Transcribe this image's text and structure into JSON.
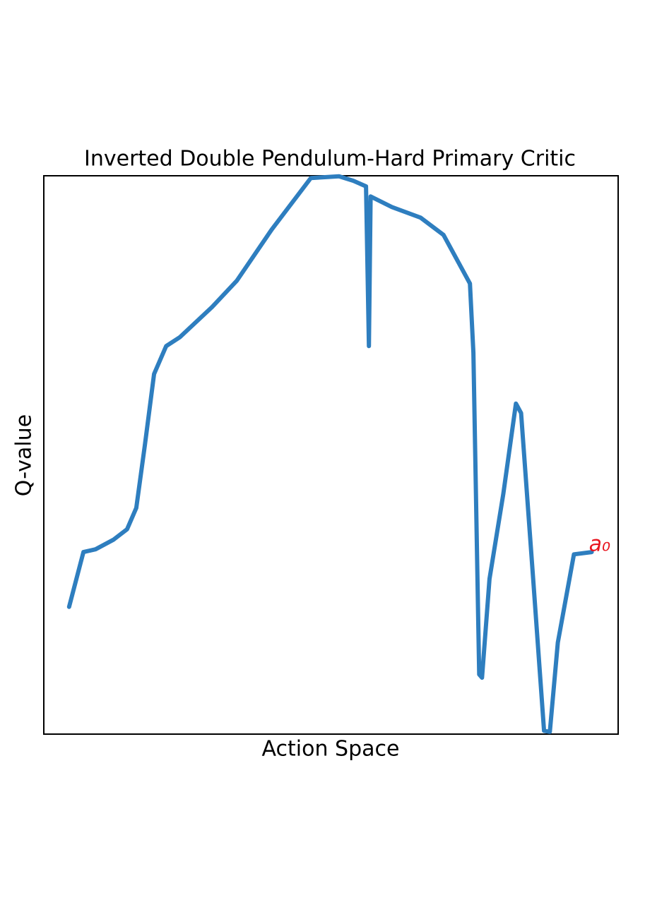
{
  "chart_data": {
    "type": "line",
    "title": "Inverted Double Pendulum-Hard Primary Critic",
    "xlabel": "Action Space",
    "ylabel": "Q-value",
    "annotation": "a₀",
    "annotation_color": "#e8141e",
    "xlim": [
      0,
      1
    ],
    "ylim": [
      0,
      1
    ],
    "x": [
      0.044,
      0.069,
      0.09,
      0.121,
      0.145,
      0.161,
      0.176,
      0.192,
      0.213,
      0.237,
      0.293,
      0.336,
      0.397,
      0.465,
      0.514,
      0.539,
      0.561,
      0.566,
      0.569,
      0.606,
      0.656,
      0.696,
      0.742,
      0.748,
      0.758,
      0.763,
      0.776,
      0.8,
      0.822,
      0.831,
      0.852,
      0.871,
      0.881,
      0.895,
      0.923,
      0.954
    ],
    "series": [
      {
        "name": "Q-value",
        "color": "#2e7ebf",
        "values": [
          0.228,
          0.326,
          0.331,
          0.348,
          0.367,
          0.405,
          0.518,
          0.645,
          0.695,
          0.711,
          0.765,
          0.812,
          0.904,
          0.996,
          0.999,
          0.991,
          0.981,
          0.695,
          0.963,
          0.944,
          0.925,
          0.894,
          0.807,
          0.683,
          0.107,
          0.101,
          0.278,
          0.43,
          0.592,
          0.575,
          0.278,
          0.006,
          0.004,
          0.164,
          0.322,
          0.326
        ]
      }
    ],
    "grid": false
  }
}
